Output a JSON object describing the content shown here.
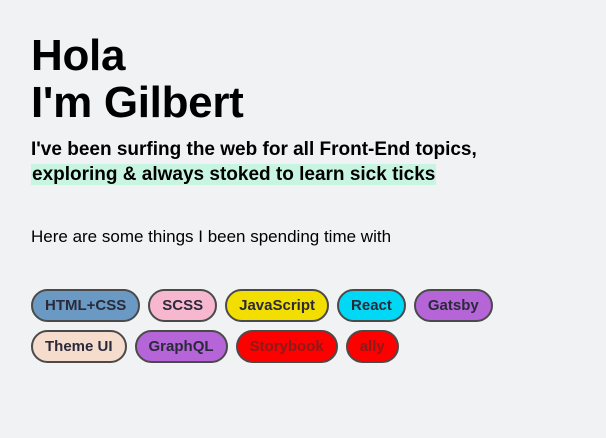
{
  "heading": {
    "line1": "Hola",
    "line2": "I'm Gilbert"
  },
  "intro": {
    "line1": "I've been surfing the web for all Front-End topics,",
    "line2": "exploring & always stoked to learn sick ticks"
  },
  "subheading": "Here are some things I been spending time with",
  "tags": [
    {
      "label": "HTML+CSS",
      "color": "#6a9ac4"
    },
    {
      "label": "SCSS",
      "color": "#f7b8cf"
    },
    {
      "label": "JavaScript",
      "color": "#f2de00"
    },
    {
      "label": "React",
      "color": "#00d8f5"
    },
    {
      "label": "Gatsby",
      "color": "#b565d8"
    },
    {
      "label": "Theme UI",
      "color": "#f5dccd"
    },
    {
      "label": "GraphQL",
      "color": "#b565d8"
    },
    {
      "label": "Storybook",
      "color": "#ff0000"
    },
    {
      "label": "ally",
      "color": "#ff0000"
    }
  ],
  "colors": {
    "background": "#f1f2f4",
    "highlight": "#c8f5e2"
  }
}
